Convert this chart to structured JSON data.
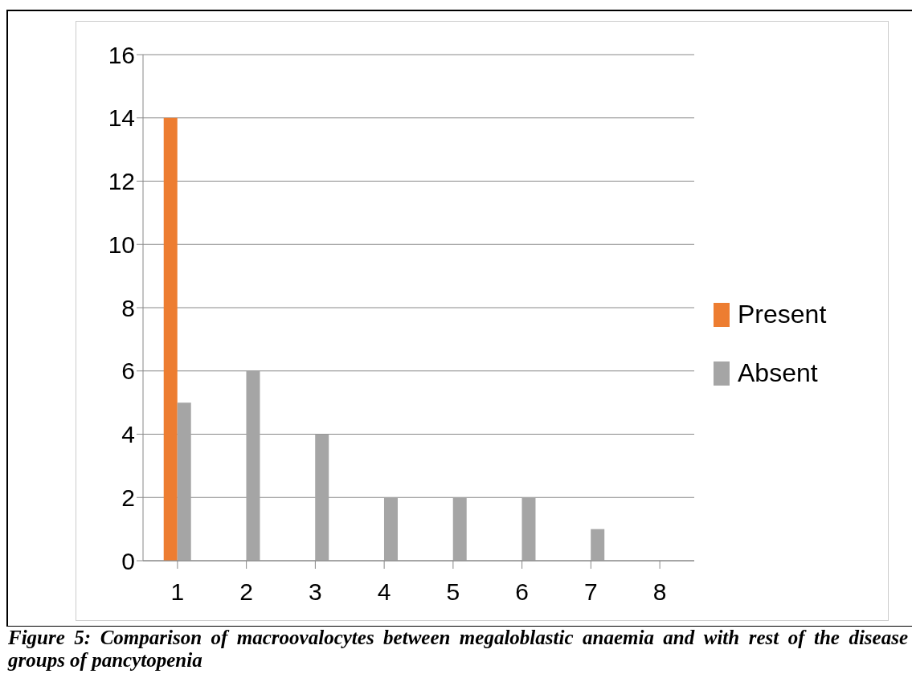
{
  "chart_data": {
    "type": "bar",
    "categories": [
      "1",
      "2",
      "3",
      "4",
      "5",
      "6",
      "7",
      "8"
    ],
    "series": [
      {
        "name": "Present",
        "color": "#ed7d31",
        "values": [
          14,
          0,
          0,
          0,
          0,
          0,
          0,
          0
        ]
      },
      {
        "name": "Absent",
        "color": "#a5a5a5",
        "values": [
          5,
          6,
          4,
          2,
          2,
          2,
          1,
          0
        ]
      }
    ],
    "ylim": [
      0,
      16
    ],
    "yticks": [
      0,
      2,
      4,
      6,
      8,
      10,
      12,
      14,
      16
    ],
    "grid": "y",
    "legend": "right",
    "annotations": [
      "Figure 5: Comparison of macroovalocytes between megaloblastic anaemia and with rest of the disease groups of pancytopenia"
    ]
  }
}
